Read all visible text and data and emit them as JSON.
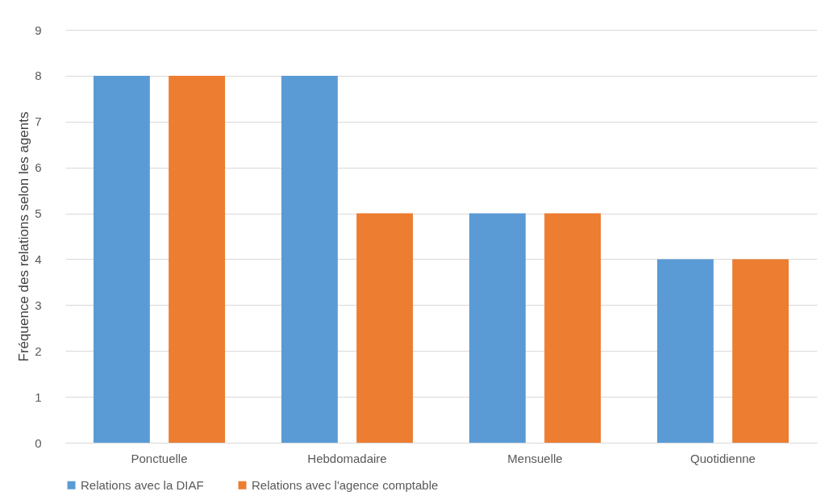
{
  "chart_data": {
    "type": "bar",
    "ylabel": "Fréquence des relations selon les agents",
    "categories": [
      "Ponctuelle",
      "Hebdomadaire",
      "Mensuelle",
      "Quotidienne"
    ],
    "series": [
      {
        "name": "Relations avec la DIAF",
        "color": "#5b9bd5",
        "values": [
          8,
          8,
          5,
          4
        ]
      },
      {
        "name": "Relations avec l'agence comptable",
        "color": "#ed7d31",
        "values": [
          8,
          5,
          5,
          4
        ]
      }
    ],
    "ylim": [
      0,
      9
    ],
    "yticks": [
      0,
      1,
      2,
      3,
      4,
      5,
      6,
      7,
      8,
      9
    ],
    "grid": "y",
    "legend": "bottom"
  }
}
